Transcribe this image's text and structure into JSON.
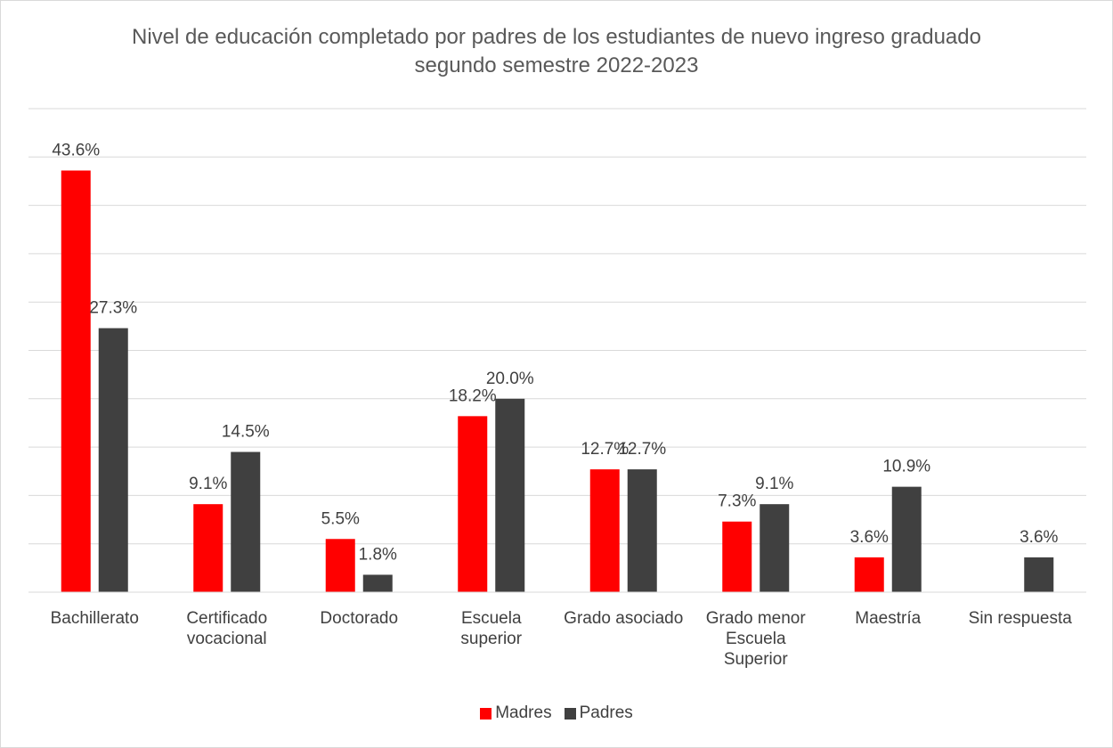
{
  "chart_data": {
    "type": "bar",
    "title": "Nivel de educación completado por padres de los estudiantes de nuevo ingreso graduado segundo semestre 2022-2023",
    "categories": [
      "Bachillerato",
      "Certificado vocacional",
      "Doctorado",
      "Escuela superior",
      "Grado asociado",
      "Grado menor Escuela Superior",
      "Maestría",
      "Sin respuesta"
    ],
    "series": [
      {
        "name": "Madres",
        "color": "#ff0000",
        "values": [
          43.6,
          9.1,
          5.5,
          18.2,
          12.7,
          7.3,
          3.6,
          null
        ],
        "value_labels": [
          "43.6%",
          "9.1%",
          "5.5%",
          "18.2%",
          "12.7%",
          "7.3%",
          "3.6%",
          null
        ]
      },
      {
        "name": "Padres",
        "color": "#404040",
        "values": [
          27.3,
          14.5,
          1.8,
          20.0,
          12.7,
          9.1,
          10.9,
          3.6
        ],
        "value_labels": [
          "27.3%",
          "14.5%",
          "1.8%",
          "20.0%",
          "12.7%",
          "9.1%",
          "10.9%",
          "3.6%"
        ]
      }
    ],
    "ylim": [
      0,
      50
    ],
    "yticks": [
      0,
      5,
      10,
      15,
      20,
      25,
      30,
      35,
      40,
      45,
      50
    ],
    "grid": true,
    "legend": "bottom"
  }
}
